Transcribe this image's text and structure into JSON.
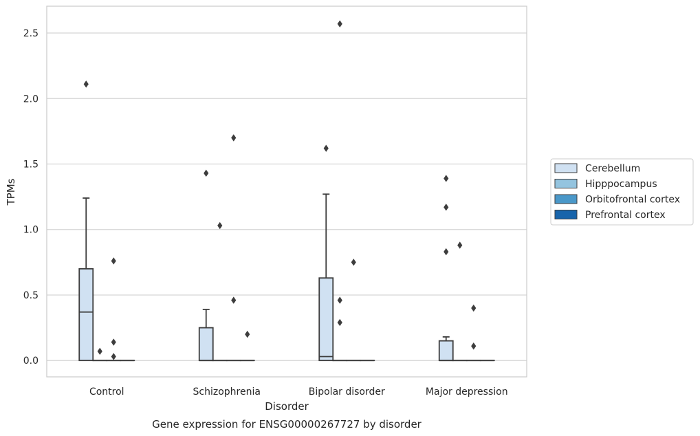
{
  "chart_data": {
    "type": "box",
    "caption": "Gene expression for ENSG00000267727 by disorder",
    "xlabel": "Disorder",
    "ylabel": "TPMs",
    "ylim": [
      -0.125,
      2.705
    ],
    "yticks": [
      0.0,
      0.5,
      1.0,
      1.5,
      2.0,
      2.5
    ],
    "ytick_labels": [
      "0.0",
      "0.5",
      "1.0",
      "1.5",
      "2.0",
      "2.5"
    ],
    "grid": "horizontal",
    "legend_position": "right",
    "categories": [
      "Control",
      "Schizophrenia",
      "Bipolar disorder",
      "Major depression"
    ],
    "series": [
      {
        "name": "Cerebellum",
        "color": "#d0e1f2",
        "boxes": [
          {
            "whislo": 0.0,
            "q1": 0.0,
            "med": 0.37,
            "q3": 0.7,
            "whishi": 1.24,
            "fliers": [
              2.11
            ]
          },
          {
            "whislo": 0.0,
            "q1": 0.0,
            "med": 0.0,
            "q3": 0.25,
            "whishi": 0.39,
            "fliers": [
              1.43
            ]
          },
          {
            "whislo": 0.0,
            "q1": 0.0,
            "med": 0.03,
            "q3": 0.63,
            "whishi": 1.27,
            "fliers": [
              1.62
            ]
          },
          {
            "whislo": 0.0,
            "q1": 0.0,
            "med": 0.0,
            "q3": 0.15,
            "whishi": 0.18,
            "fliers": [
              1.39,
              1.17,
              0.83
            ]
          }
        ]
      },
      {
        "name": "Hipppocampus",
        "color": "#94c4df",
        "boxes": [
          {
            "whislo": 0.0,
            "q1": 0.0,
            "med": 0.0,
            "q3": 0.0,
            "whishi": 0.0,
            "fliers": [
              0.07
            ]
          },
          {
            "whislo": 0.0,
            "q1": 0.0,
            "med": 0.0,
            "q3": 0.0,
            "whishi": 0.0,
            "fliers": [
              1.03
            ]
          },
          {
            "whislo": 0.0,
            "q1": 0.0,
            "med": 0.0,
            "q3": 0.0,
            "whishi": 0.0,
            "fliers": [
              2.57,
              0.46,
              0.29
            ]
          },
          {
            "whislo": 0.0,
            "q1": 0.0,
            "med": 0.0,
            "q3": 0.0,
            "whishi": 0.0,
            "fliers": [
              0.88
            ]
          }
        ]
      },
      {
        "name": "Orbitofrontal cortex",
        "color": "#4a98c9",
        "boxes": [
          {
            "whislo": 0.0,
            "q1": 0.0,
            "med": 0.0,
            "q3": 0.0,
            "whishi": 0.0,
            "fliers": [
              0.76,
              0.14,
              0.03
            ]
          },
          {
            "whislo": 0.0,
            "q1": 0.0,
            "med": 0.0,
            "q3": 0.0,
            "whishi": 0.0,
            "fliers": [
              1.7,
              0.46
            ]
          },
          {
            "whislo": 0.0,
            "q1": 0.0,
            "med": 0.0,
            "q3": 0.0,
            "whishi": 0.0,
            "fliers": [
              0.75
            ]
          },
          {
            "whislo": 0.0,
            "q1": 0.0,
            "med": 0.0,
            "q3": 0.0,
            "whishi": 0.0,
            "fliers": [
              0.4,
              0.11
            ]
          }
        ]
      },
      {
        "name": "Prefrontal cortex",
        "color": "#1764ab",
        "boxes": [
          {
            "whislo": 0.0,
            "q1": 0.0,
            "med": 0.0,
            "q3": 0.0,
            "whishi": 0.0,
            "fliers": []
          },
          {
            "whislo": 0.0,
            "q1": 0.0,
            "med": 0.0,
            "q3": 0.0,
            "whishi": 0.0,
            "fliers": [
              0.2
            ]
          },
          {
            "whislo": 0.0,
            "q1": 0.0,
            "med": 0.0,
            "q3": 0.0,
            "whishi": 0.0,
            "fliers": []
          },
          {
            "whislo": 0.0,
            "q1": 0.0,
            "med": 0.0,
            "q3": 0.0,
            "whishi": 0.0,
            "fliers": []
          }
        ]
      }
    ],
    "colors": {
      "grid": "#d5d5d5",
      "frame": "#cccccc",
      "box_edge": "#3d3d3d",
      "flier": "#3d3d3d",
      "text": "#262626"
    }
  }
}
